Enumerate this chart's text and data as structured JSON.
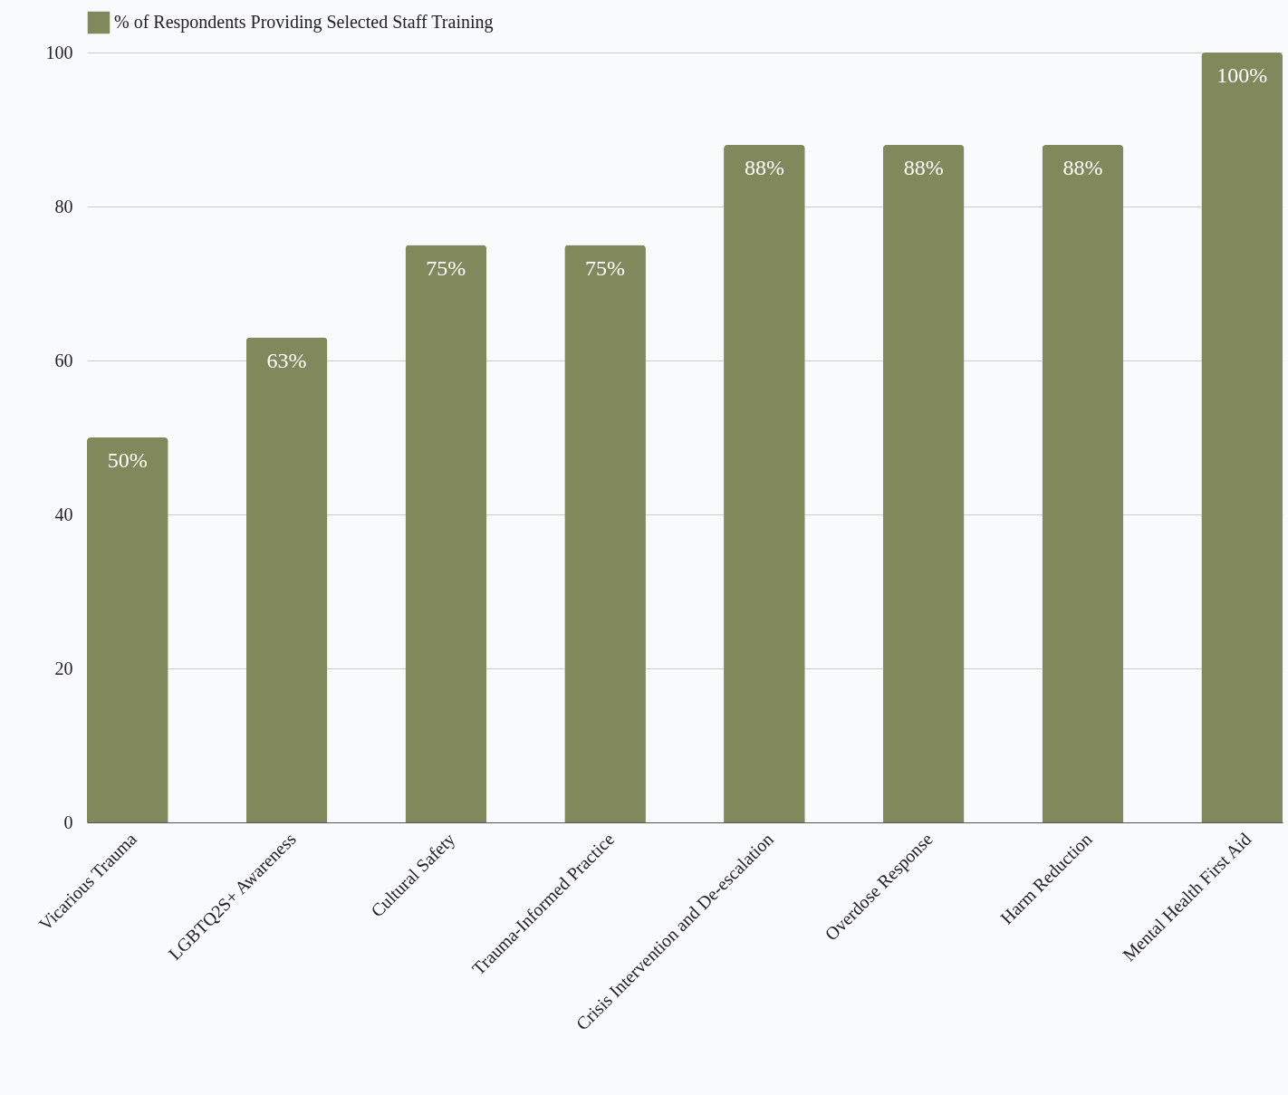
{
  "chart_data": {
    "type": "bar",
    "categories": [
      "Vicarious Trauma",
      "LGBTQ2S+ Awareness",
      "Cultural Safety",
      "Trauma-Informed Practice",
      "Crisis Intervention and De-escalation",
      "Overdose Response",
      "Harm Reduction",
      "Mental Health First Aid"
    ],
    "series": [
      {
        "name": "% of Respondents Providing Selected Staff Training",
        "color": "#80885c",
        "values": [
          50,
          63,
          75,
          75,
          88,
          88,
          88,
          100
        ],
        "value_labels": [
          "50%",
          "63%",
          "75%",
          "75%",
          "88%",
          "88%",
          "88%",
          "100%"
        ]
      }
    ],
    "ylim": [
      0,
      100
    ],
    "yticks": [
      0,
      20,
      40,
      60,
      80,
      100
    ],
    "grid": "y",
    "legend": "top"
  }
}
